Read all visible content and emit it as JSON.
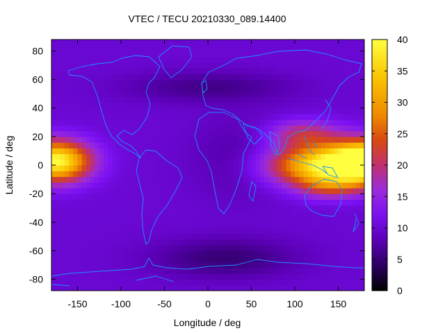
{
  "chart_data": {
    "type": "heatmap",
    "title": "VTEC / TECU 20210330_089.14400",
    "xlabel": "Longitude / deg",
    "ylabel": "Latitude / deg",
    "xlim": [
      -180,
      180
    ],
    "ylim": [
      -88,
      88
    ],
    "x_ticks": [
      -150,
      -100,
      -50,
      0,
      50,
      100,
      150
    ],
    "y_ticks": [
      -80,
      -60,
      -40,
      -20,
      0,
      20,
      40,
      60,
      80
    ],
    "colorbar": {
      "range": [
        0,
        40
      ],
      "ticks": [
        0,
        5,
        10,
        15,
        20,
        25,
        30,
        35,
        40
      ],
      "colors": [
        "#000000",
        "#2b0060",
        "#5a00b4",
        "#7b10f2",
        "#9a2bdc",
        "#c0306f",
        "#d84a10",
        "#ef8a00",
        "#fac400",
        "#ffff40"
      ]
    },
    "overlay": "coastlines",
    "overlay_color": "#1e90ff",
    "grid": false,
    "features": [
      {
        "name": "equatorial anomaly peak (west)",
        "lon": -170,
        "lat": 2,
        "value": 40
      },
      {
        "name": "equatorial anomaly peak (east)",
        "lon": 140,
        "lat": -5,
        "value": 40
      },
      {
        "name": "night-side minimum",
        "lon": 20,
        "lat": -65,
        "value": 4
      }
    ]
  }
}
